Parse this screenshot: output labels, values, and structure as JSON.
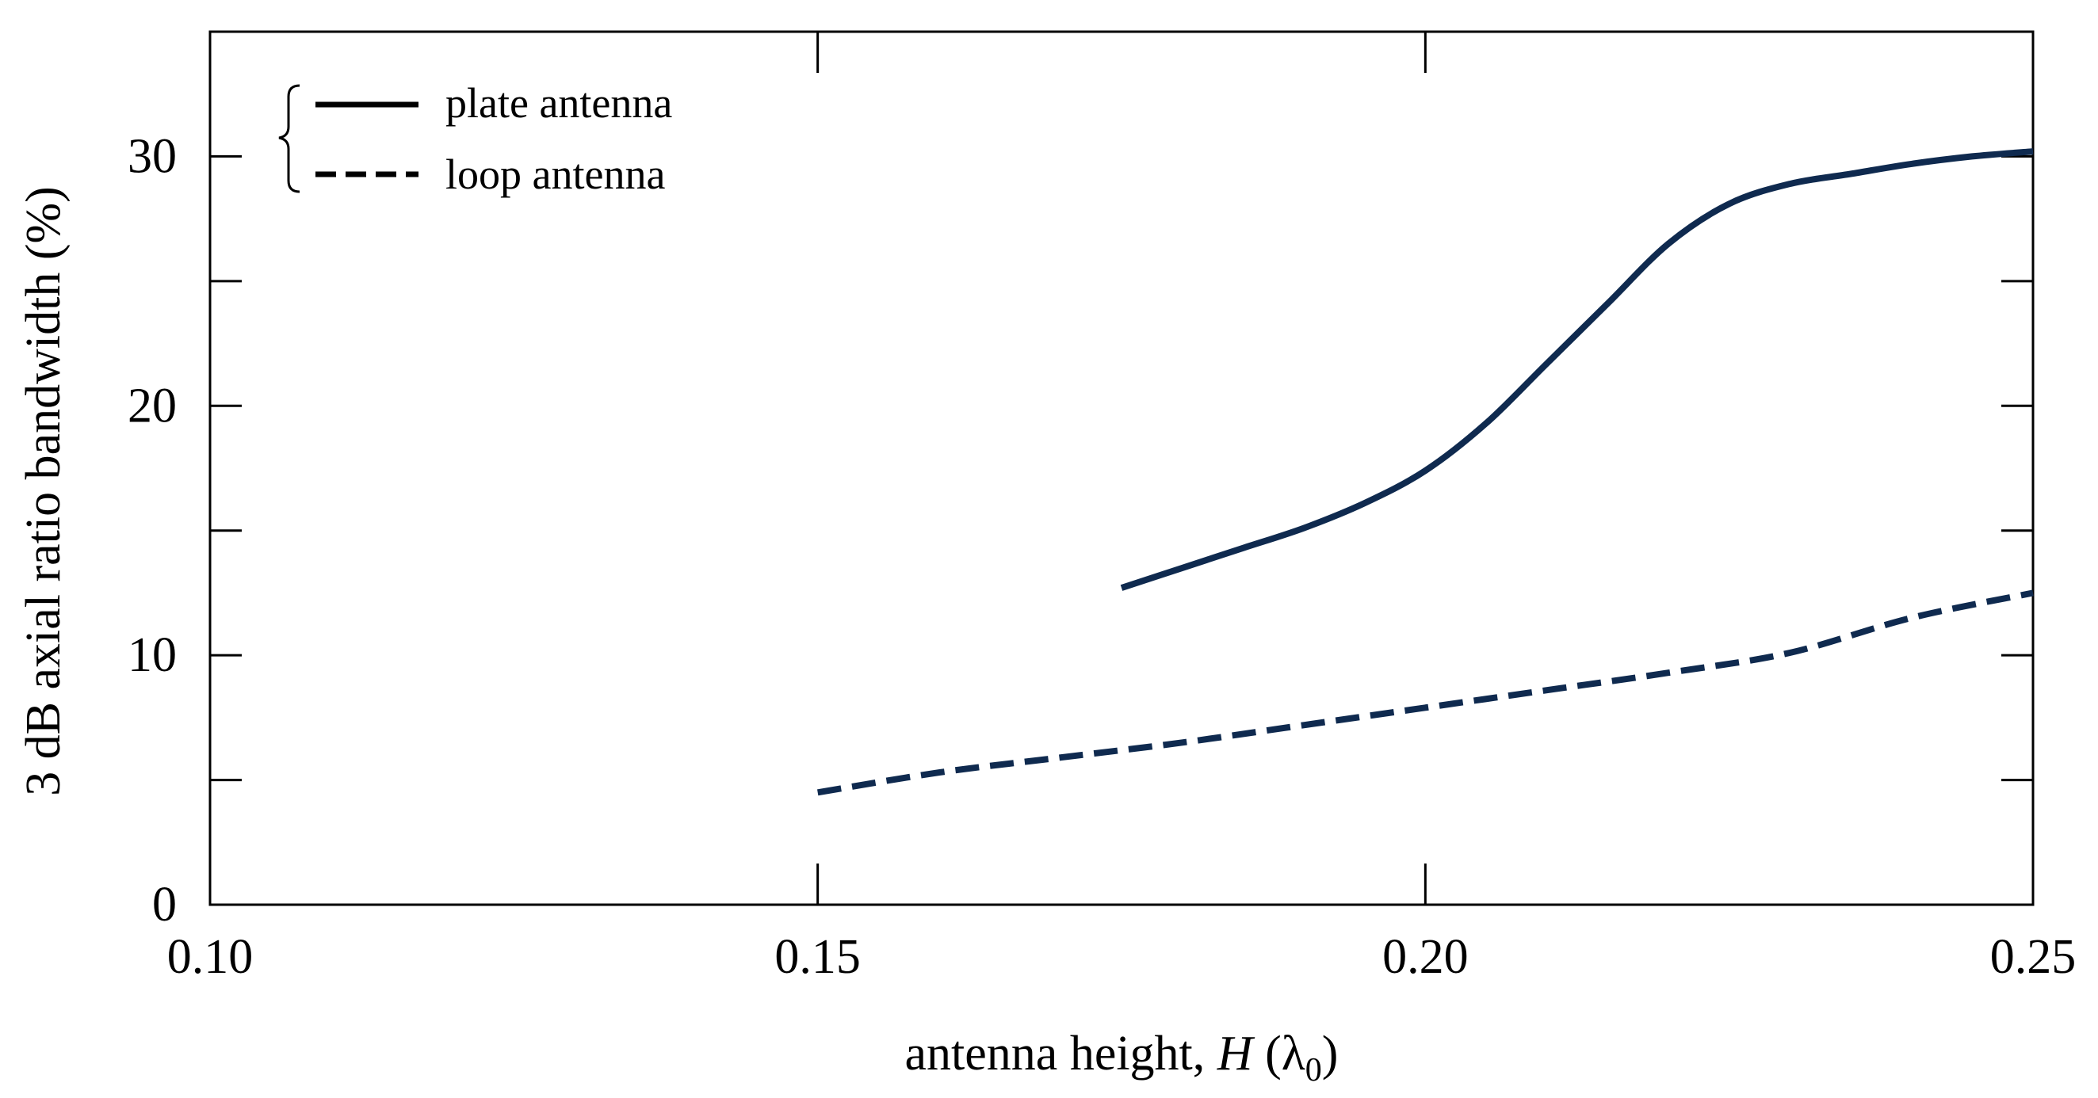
{
  "chart_data": {
    "type": "line",
    "title": "",
    "xlabel": {
      "prefix": "antenna height, ",
      "var": "H",
      "unit_open": " (",
      "unit_symbol": "λ",
      "unit_sub": "0",
      "unit_close": ")"
    },
    "ylabel": "3 dB axial ratio bandwidth (%)",
    "xlim": [
      0.1,
      0.25
    ],
    "ylim": [
      0,
      35
    ],
    "xticks": [
      {
        "value": 0.1,
        "label": "0.10"
      },
      {
        "value": 0.15,
        "label": "0.15"
      },
      {
        "value": 0.2,
        "label": "0.20"
      },
      {
        "value": 0.25,
        "label": "0.25"
      }
    ],
    "yticks": [
      {
        "value": 0,
        "label": "0"
      },
      {
        "value": 5,
        "label": ""
      },
      {
        "value": 10,
        "label": "10"
      },
      {
        "value": 15,
        "label": ""
      },
      {
        "value": 20,
        "label": "20"
      },
      {
        "value": 25,
        "label": ""
      },
      {
        "value": 30,
        "label": "30"
      }
    ],
    "grid": false,
    "legend_position": "top-left",
    "series": [
      {
        "name": "plate antenna",
        "style": "solid",
        "color": "#0f2a4f",
        "x": [
          0.175,
          0.18,
          0.185,
          0.19,
          0.195,
          0.2,
          0.205,
          0.21,
          0.215,
          0.22,
          0.225,
          0.23,
          0.235,
          0.24,
          0.245,
          0.25
        ],
        "y": [
          12.7,
          13.5,
          14.3,
          15.1,
          16.1,
          17.4,
          19.3,
          21.7,
          24.1,
          26.5,
          28.1,
          28.9,
          29.3,
          29.7,
          30.0,
          30.2
        ]
      },
      {
        "name": "loop antenna",
        "style": "dashed",
        "color": "#0f2a4f",
        "x": [
          0.15,
          0.16,
          0.17,
          0.18,
          0.19,
          0.2,
          0.21,
          0.22,
          0.23,
          0.24,
          0.25
        ],
        "y": [
          4.5,
          5.3,
          5.9,
          6.5,
          7.2,
          7.9,
          8.6,
          9.3,
          10.1,
          11.5,
          12.5
        ]
      }
    ]
  }
}
